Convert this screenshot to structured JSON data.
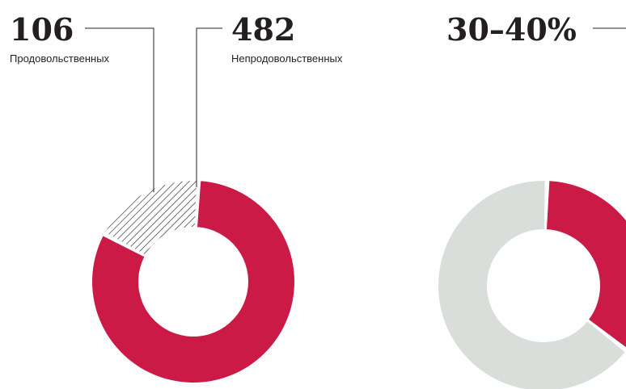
{
  "chart_data": [
    {
      "type": "pie",
      "variant": "donut",
      "slices": [
        {
          "label": "Продовольственных",
          "value": 106,
          "style": "hatched",
          "color": "#231f20"
        },
        {
          "label": "Непродовольственных",
          "value": 482,
          "style": "solid",
          "color": "#cc1a47"
        }
      ],
      "annotations": [
        "106",
        "482"
      ]
    },
    {
      "type": "pie",
      "variant": "donut",
      "annotation": "30–40%",
      "slices": [
        {
          "value": 35,
          "color": "#cc1a47"
        },
        {
          "value": 65,
          "color": "#d9dedb"
        }
      ]
    }
  ],
  "colors": {
    "accent": "#cc1a47",
    "neutral": "#d9dedb",
    "ink": "#231f20"
  }
}
